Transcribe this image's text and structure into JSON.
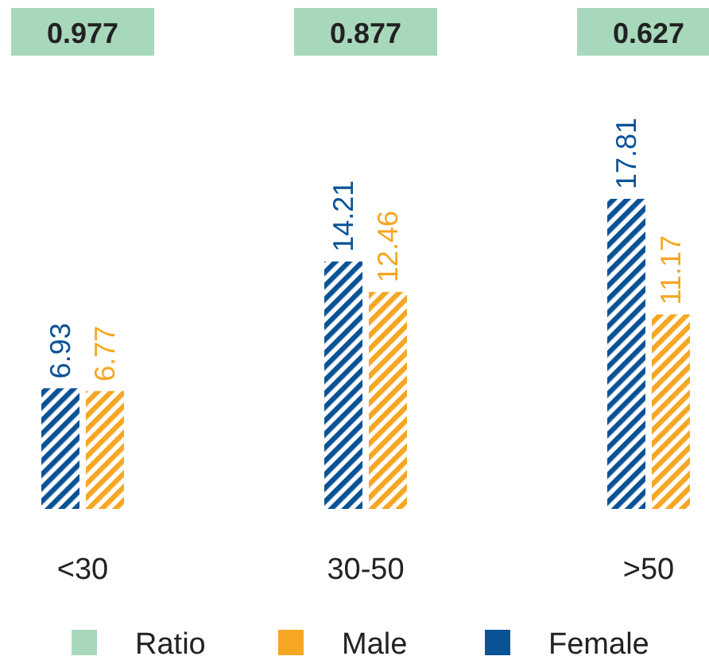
{
  "chart_data": {
    "type": "bar",
    "categories": [
      "<30",
      "30-50",
      ">50"
    ],
    "data_labels": true,
    "legend": "bottom",
    "series": [
      {
        "name": "Ratio",
        "type": "other",
        "color": "#a8d8bc",
        "values": [
          null,
          null,
          null
        ],
        "value_labels": [
          "0.977",
          "0.877",
          "0.627"
        ]
      },
      {
        "name": "Male",
        "color": "#f5a623",
        "values": [
          6.77,
          12.46,
          11.17
        ]
      },
      {
        "name": "Female",
        "color": "#0a5296",
        "values": [
          6.93,
          14.21,
          17.81
        ]
      }
    ]
  }
}
